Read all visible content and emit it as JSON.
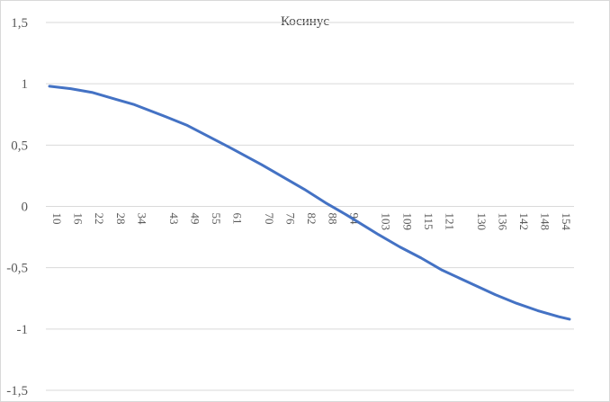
{
  "chart_data": {
    "type": "line",
    "title": "Косинус",
    "xlabel": "",
    "ylabel": "",
    "ylim": [
      -1.5,
      1.5
    ],
    "y_ticks": [
      -1.5,
      -1,
      -0.5,
      0,
      0.5,
      1,
      1.5
    ],
    "y_tick_labels": [
      "-1,5",
      "-1",
      "-0,5",
      "0",
      "0,5",
      "1",
      "1,5"
    ],
    "x_tick_labels": [
      "10",
      "16",
      "22",
      "28",
      "34",
      "43",
      "49",
      "55",
      "61",
      "70",
      "76",
      "82",
      "88",
      "94",
      "103",
      "109",
      "115",
      "121",
      "130",
      "136",
      "142",
      "148",
      "154"
    ],
    "x_range_degrees": [
      10,
      157
    ],
    "grid": true,
    "legend": "none",
    "series": [
      {
        "color": "#4472c4",
        "x": [
          10,
          16,
          22,
          28,
          34,
          43,
          49,
          55,
          61,
          70,
          76,
          82,
          88,
          94,
          103,
          109,
          115,
          121,
          130,
          136,
          142,
          148,
          154,
          157
        ],
        "values": [
          0.98,
          0.96,
          0.93,
          0.88,
          0.83,
          0.73,
          0.66,
          0.57,
          0.48,
          0.34,
          0.24,
          0.14,
          0.03,
          -0.07,
          -0.23,
          -0.33,
          -0.42,
          -0.52,
          -0.64,
          -0.72,
          -0.79,
          -0.85,
          -0.9,
          -0.92
        ]
      }
    ]
  }
}
